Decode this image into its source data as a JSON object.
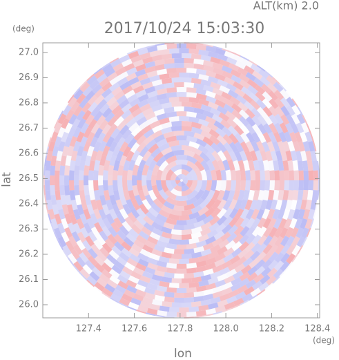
{
  "chart_data": {
    "type": "ppi",
    "title": "2017/10/24 15:03:30",
    "subtitle": "ALT(km) 2.0",
    "x_label": "lon",
    "y_label": "lat",
    "x_unit": "(deg)",
    "y_unit": "(deg)",
    "xlim": [
      127.2,
      128.41
    ],
    "ylim": [
      25.948,
      27.038
    ],
    "xticks": [
      127.4,
      127.6,
      127.8,
      {
        "value": 128,
        "label": "128.0"
      },
      128.2,
      128.4
    ],
    "yticks": [
      {
        "value": 26,
        "label": "26.0"
      },
      26.1,
      26.2,
      26.3,
      26.4,
      26.5,
      26.6,
      26.7,
      26.8,
      26.9,
      {
        "value": 27,
        "label": "27.0"
      }
    ]
  }
}
